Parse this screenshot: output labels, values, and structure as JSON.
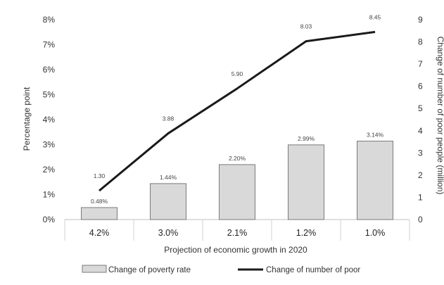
{
  "chart_data": {
    "type": "bar+line",
    "xlabel": "Projection of economic growth in 2020",
    "categories": [
      "4.2%",
      "3.0%",
      "2.1%",
      "1.2%",
      "1.0%"
    ],
    "y_left": {
      "label": "Percentage point",
      "ylim": [
        0,
        8
      ],
      "ticks": [
        "0%",
        "1%",
        "2%",
        "3%",
        "4%",
        "5%",
        "6%",
        "7%",
        "8%"
      ]
    },
    "y_right": {
      "label": "Change of number of poor people (million)",
      "ylim": [
        0,
        9
      ],
      "ticks": [
        "0",
        "1",
        "2",
        "3",
        "4",
        "5",
        "6",
        "7",
        "8",
        "9"
      ]
    },
    "series": [
      {
        "name": "Change of poverty rate",
        "type": "bar",
        "axis": "left",
        "values": [
          0.48,
          1.44,
          2.2,
          2.99,
          3.14
        ],
        "labels": [
          "0.48%",
          "1.44%",
          "2.20%",
          "2.99%",
          "3.14%"
        ],
        "color": "#d9d9d9"
      },
      {
        "name": "Change of number of poor",
        "type": "line",
        "axis": "right",
        "values": [
          1.3,
          3.88,
          5.9,
          8.03,
          8.45
        ],
        "labels": [
          "1.30",
          "3.88",
          "5.90",
          "8.03",
          "8.45"
        ],
        "color": "#1a1a1a"
      }
    ],
    "grid": false,
    "legend_position": "bottom"
  }
}
